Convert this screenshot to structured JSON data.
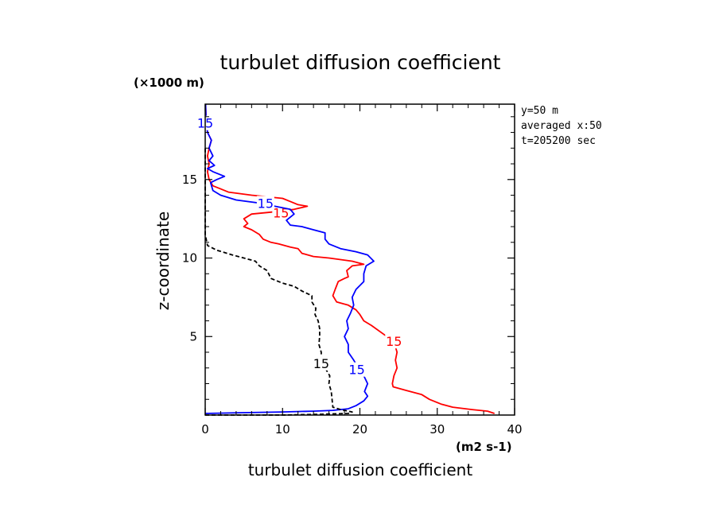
{
  "chart_data": {
    "type": "line",
    "title": "turbulet diffusion coefficient",
    "xlabel": "turbulet diffusion coefficient",
    "xunit": "(m2 s-1)",
    "ylabel": "z-coordinate",
    "yunit": "(×1000 m)",
    "xlim": [
      0,
      40
    ],
    "ylim": [
      0,
      19.8
    ],
    "xticks": [
      0,
      10,
      20,
      30,
      40
    ],
    "yticks": [
      5,
      10,
      15
    ],
    "xtick_labels": [
      "0",
      "10",
      "20",
      "30",
      "40"
    ],
    "ytick_labels": [
      "5",
      "10",
      "15"
    ],
    "info": [
      "y=50 m",
      "averaged  x:50",
      "t=205200 sec"
    ],
    "series": [
      {
        "color": "#ff0000",
        "dash": "solid",
        "contour_label": "15",
        "label_points": [
          [
            9.8,
            12.9
          ],
          [
            24.4,
            4.7
          ]
        ],
        "points": [
          [
            37.4,
            0.1
          ],
          [
            36.5,
            0.25
          ],
          [
            34.5,
            0.35
          ],
          [
            32,
            0.5
          ],
          [
            30.5,
            0.7
          ],
          [
            29,
            1.0
          ],
          [
            28,
            1.3
          ],
          [
            26.5,
            1.5
          ],
          [
            25,
            1.7
          ],
          [
            24.3,
            1.8
          ],
          [
            24.2,
            2.0
          ],
          [
            24.4,
            2.5
          ],
          [
            24.8,
            3.0
          ],
          [
            24.6,
            3.5
          ],
          [
            24.8,
            4.0
          ],
          [
            24.5,
            4.5
          ],
          [
            23.5,
            5.0
          ],
          [
            21.5,
            5.7
          ],
          [
            20.5,
            6.0
          ],
          [
            20,
            6.4
          ],
          [
            19.5,
            6.7
          ],
          [
            18.5,
            7.0
          ],
          [
            17,
            7.2
          ],
          [
            16.5,
            7.6
          ],
          [
            16.8,
            8.0
          ],
          [
            17.2,
            8.5
          ],
          [
            18,
            8.7
          ],
          [
            18.5,
            8.8
          ],
          [
            18.3,
            9.2
          ],
          [
            19,
            9.5
          ],
          [
            20.5,
            9.6
          ],
          [
            19,
            9.8
          ],
          [
            17.5,
            9.9
          ],
          [
            16,
            10.0
          ],
          [
            14,
            10.1
          ],
          [
            12.5,
            10.3
          ],
          [
            12,
            10.6
          ],
          [
            11,
            10.7
          ],
          [
            9.5,
            10.9
          ],
          [
            8.5,
            11.0
          ],
          [
            7.5,
            11.2
          ],
          [
            7,
            11.5
          ],
          [
            6,
            11.8
          ],
          [
            5,
            12.0
          ],
          [
            5.5,
            12.2
          ],
          [
            5,
            12.5
          ],
          [
            6,
            12.8
          ],
          [
            8,
            12.9
          ],
          [
            10,
            13.0
          ],
          [
            11.5,
            13.1
          ],
          [
            13.2,
            13.3
          ],
          [
            12,
            13.4
          ],
          [
            11,
            13.6
          ],
          [
            10,
            13.8
          ],
          [
            6,
            14.0
          ],
          [
            3,
            14.2
          ],
          [
            2,
            14.4
          ],
          [
            1,
            14.6
          ],
          [
            0.5,
            15.0
          ],
          [
            0.3,
            15.5
          ],
          [
            0.5,
            16.0
          ],
          [
            0.3,
            16.5
          ],
          [
            0.5,
            17.0
          ],
          [
            0.8,
            17.5
          ],
          [
            0.3,
            18.0
          ],
          [
            0.1,
            19.0
          ],
          [
            0.05,
            19.8
          ]
        ]
      },
      {
        "color": "#0000ff",
        "dash": "solid",
        "contour_label": "15",
        "label_points": [
          [
            7.8,
            13.5
          ],
          [
            19.6,
            2.9
          ],
          [
            0,
            18.6
          ]
        ],
        "points": [
          [
            0,
            0.1
          ],
          [
            5,
            0.15
          ],
          [
            10,
            0.2
          ],
          [
            14,
            0.25
          ],
          [
            16.5,
            0.3
          ],
          [
            18.5,
            0.4
          ],
          [
            19.5,
            0.6
          ],
          [
            20.5,
            0.9
          ],
          [
            21,
            1.2
          ],
          [
            20.6,
            1.5
          ],
          [
            21,
            2.0
          ],
          [
            20.5,
            2.5
          ],
          [
            19.8,
            3.0
          ],
          [
            19.2,
            3.5
          ],
          [
            18.5,
            4.0
          ],
          [
            18.5,
            4.5
          ],
          [
            18.0,
            5.0
          ],
          [
            18.5,
            5.5
          ],
          [
            18.3,
            6.0
          ],
          [
            18.8,
            6.5
          ],
          [
            19.2,
            7.0
          ],
          [
            19,
            7.5
          ],
          [
            19.5,
            8.0
          ],
          [
            20.5,
            8.5
          ],
          [
            20.5,
            9.0
          ],
          [
            20.8,
            9.5
          ],
          [
            21.8,
            9.8
          ],
          [
            21,
            10.2
          ],
          [
            19.5,
            10.4
          ],
          [
            17.5,
            10.6
          ],
          [
            16,
            10.9
          ],
          [
            15.5,
            11.2
          ],
          [
            15.5,
            11.6
          ],
          [
            14,
            11.8
          ],
          [
            12.5,
            12.0
          ],
          [
            11,
            12.1
          ],
          [
            10.5,
            12.4
          ],
          [
            11.5,
            12.8
          ],
          [
            11,
            13.1
          ],
          [
            9,
            13.3
          ],
          [
            7,
            13.5
          ],
          [
            4,
            13.7
          ],
          [
            2,
            14.0
          ],
          [
            1,
            14.3
          ],
          [
            0.7,
            14.8
          ],
          [
            1.5,
            15.0
          ],
          [
            2.5,
            15.2
          ],
          [
            1,
            15.5
          ],
          [
            0.3,
            15.7
          ],
          [
            1.2,
            15.9
          ],
          [
            0.5,
            16.2
          ],
          [
            1,
            16.5
          ],
          [
            0.5,
            17.0
          ],
          [
            0.8,
            17.5
          ],
          [
            0.3,
            18.0
          ],
          [
            0.1,
            19.0
          ],
          [
            0.05,
            19.8
          ]
        ]
      },
      {
        "color": "#000000",
        "dash": "dashed",
        "contour_label": "15",
        "label_points": [
          [
            15,
            3.3
          ]
        ],
        "points": [
          [
            0,
            0
          ],
          [
            5,
            0
          ],
          [
            10,
            0
          ],
          [
            15,
            0.05
          ],
          [
            18.5,
            0.1
          ],
          [
            19,
            0.2
          ],
          [
            17.5,
            0.35
          ],
          [
            16.5,
            0.5
          ],
          [
            16.4,
            1.0
          ],
          [
            16.3,
            1.5
          ],
          [
            16,
            2.0
          ],
          [
            16.1,
            2.5
          ],
          [
            15.5,
            3.0
          ],
          [
            15,
            3.5
          ],
          [
            15,
            4.0
          ],
          [
            14.7,
            4.5
          ],
          [
            14.8,
            5.0
          ],
          [
            14.8,
            5.5
          ],
          [
            14.6,
            6.0
          ],
          [
            14.2,
            6.4
          ],
          [
            14.3,
            6.8
          ],
          [
            13.8,
            7.2
          ],
          [
            13.8,
            7.6
          ],
          [
            12.5,
            7.9
          ],
          [
            11.5,
            8.2
          ],
          [
            10,
            8.4
          ],
          [
            8.5,
            8.7
          ],
          [
            8,
            9.2
          ],
          [
            7,
            9.5
          ],
          [
            6.5,
            9.8
          ],
          [
            5,
            10.0
          ],
          [
            3.5,
            10.2
          ],
          [
            1.5,
            10.5
          ],
          [
            0.3,
            10.8
          ],
          [
            0,
            11.5
          ],
          [
            0,
            12.5
          ],
          [
            0,
            14.0
          ],
          [
            0,
            16.0
          ],
          [
            0,
            17.0
          ]
        ]
      }
    ]
  }
}
